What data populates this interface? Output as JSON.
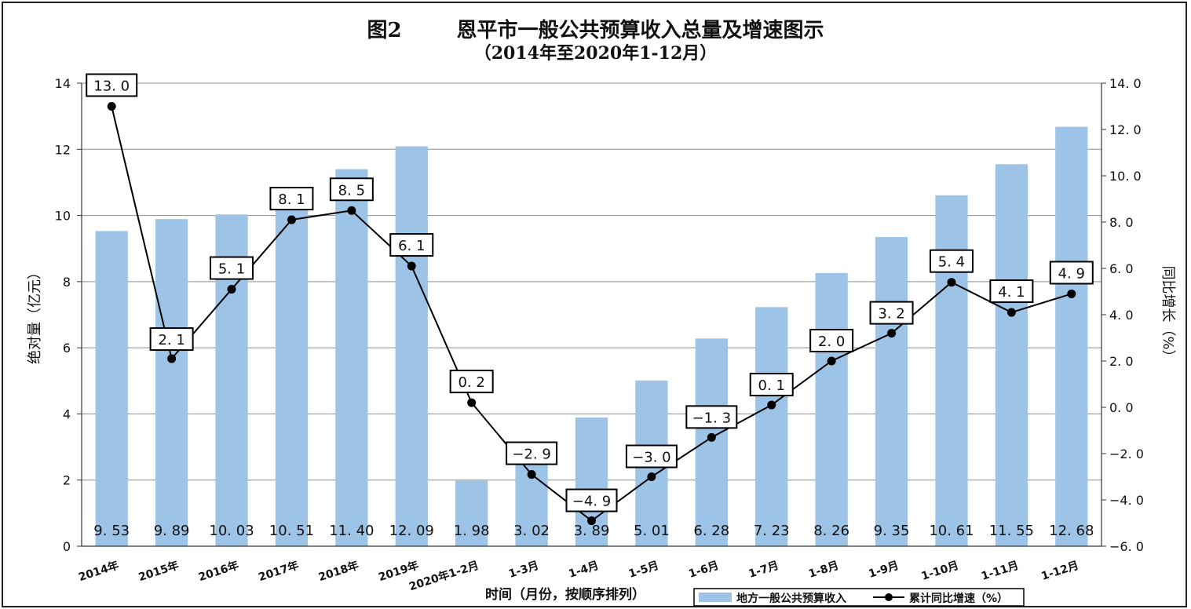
{
  "chart_data": {
    "type": "bar",
    "title_number": "图2",
    "title": "恩平市一般公共预算收入总量及增速图示",
    "subtitle": "（2014年至2020年1-12月）",
    "xlabel": "时间（月份，按顺序排列）",
    "ylabel_left": "绝对量（亿元）",
    "ylabel_right": "同比增长（%）",
    "categories": [
      "2014年",
      "2015年",
      "2016年",
      "2017年",
      "2018年",
      "2019年",
      "2020年1-2月",
      "1-3月",
      "1-4月",
      "1-5月",
      "1-6月",
      "1-7月",
      "1-8月",
      "1-9月",
      "1-10月",
      "1-11月",
      "1-12月"
    ],
    "series": [
      {
        "name": "地方一般公共预算收入",
        "type": "bar",
        "axis": "left",
        "color": "#9dc3e6",
        "values": [
          9.53,
          9.89,
          10.03,
          10.51,
          11.4,
          12.09,
          1.98,
          3.02,
          3.89,
          5.01,
          6.28,
          7.23,
          8.26,
          9.35,
          10.61,
          11.55,
          12.68
        ],
        "labels": [
          "9. 53",
          "9. 89",
          "10. 03",
          "10. 51",
          "11. 40",
          "12. 09",
          "1. 98",
          "3. 02",
          "3. 89",
          "5. 01",
          "6. 28",
          "7. 23",
          "8. 26",
          "9. 35",
          "10. 61",
          "11. 55",
          "12. 68"
        ]
      },
      {
        "name": "累计同比增速（%）",
        "type": "line",
        "axis": "right",
        "color": "#000000",
        "values": [
          13.0,
          2.1,
          5.1,
          8.1,
          8.5,
          6.1,
          0.2,
          -2.9,
          -4.9,
          -3.0,
          -1.3,
          0.1,
          2.0,
          3.2,
          5.4,
          4.1,
          4.9
        ],
        "labels": [
          "13. 0",
          "2. 1",
          "5. 1",
          "8. 1",
          "8. 5",
          "6. 1",
          "0. 2",
          "−2. 9",
          "−4. 9",
          "−3. 0",
          "−1. 3",
          "0. 1",
          "2. 0",
          "3. 2",
          "5. 4",
          "4. 1",
          "4. 9"
        ]
      }
    ],
    "ylim_left": [
      0,
      14
    ],
    "yticks_left": [
      "0",
      "2",
      "4",
      "6",
      "8",
      "10",
      "12",
      "14"
    ],
    "ylim_right": [
      -6,
      14
    ],
    "yticks_right": [
      "−6. 0",
      "−4. 0",
      "−2. 0",
      "0. 0",
      "2. 0",
      "4. 0",
      "6. 0",
      "8. 0",
      "10. 0",
      "12. 0",
      "14. 0"
    ],
    "grid": true,
    "legend": "bottom-right"
  }
}
